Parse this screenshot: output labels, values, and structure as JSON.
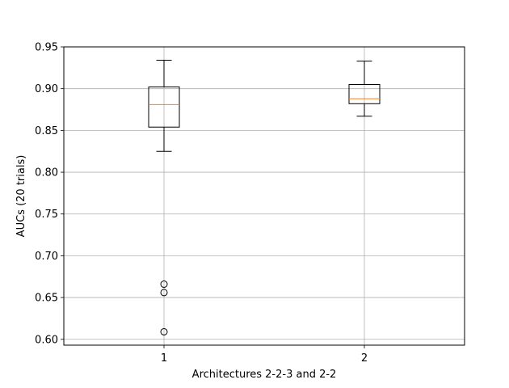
{
  "chart_data": {
    "type": "boxplot",
    "xlabel": "Architectures 2-2-3 and 2-2",
    "ylabel": "AUCs (20 trials)",
    "ylim": [
      0.593,
      0.95
    ],
    "yticks": [
      0.6,
      0.65,
      0.7,
      0.75,
      0.8,
      0.85,
      0.9,
      0.95
    ],
    "ytick_labels": [
      "0.60",
      "0.65",
      "0.70",
      "0.75",
      "0.80",
      "0.85",
      "0.90",
      "0.95"
    ],
    "categories": [
      "1",
      "2"
    ],
    "grid": true,
    "boxes": [
      {
        "label": "1",
        "whisker_low": 0.825,
        "q1": 0.854,
        "median": 0.881,
        "q3": 0.902,
        "whisker_high": 0.934,
        "outliers": [
          0.666,
          0.656,
          0.609
        ]
      },
      {
        "label": "2",
        "whisker_low": 0.867,
        "q1": 0.882,
        "median": 0.888,
        "q3": 0.905,
        "whisker_high": 0.933,
        "outliers": []
      }
    ],
    "colors": {
      "box": "#000000",
      "median": "#ff7f0e",
      "grid": "#b0b0b0"
    }
  }
}
